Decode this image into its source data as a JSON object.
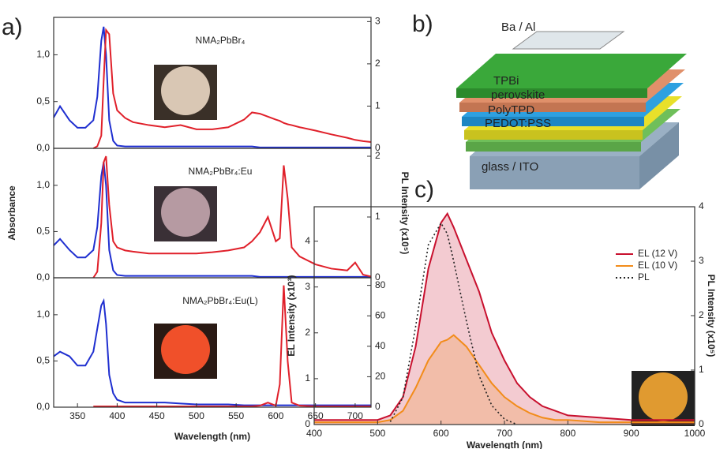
{
  "chart_data": [
    {
      "type": "line",
      "label": "a)",
      "title": "NMA₂PbBr₄",
      "x": [
        320,
        328,
        340,
        350,
        360,
        370,
        375,
        380,
        383,
        386,
        390,
        395,
        400,
        410,
        420,
        440,
        460,
        480,
        500,
        520,
        540,
        560,
        570,
        580,
        590,
        600,
        605,
        610,
        615,
        620,
        630,
        650,
        670,
        690,
        700,
        710,
        720
      ],
      "xlim": [
        320,
        720
      ],
      "ylim": [
        0,
        1.4
      ],
      "y2lim": [
        0,
        3.1
      ],
      "yticks": [
        {
          "value": 0,
          "label": "0,0"
        },
        {
          "value": 0.5,
          "label": "0,5"
        },
        {
          "value": 1,
          "label": "1,0"
        }
      ],
      "y2ticks": [
        0,
        1,
        2,
        3
      ],
      "series": [
        {
          "name": "Absorbance",
          "color": "#1f2fd0",
          "values": [
            0.33,
            0.45,
            0.3,
            0.22,
            0.22,
            0.3,
            0.55,
            1.15,
            1.3,
            1.0,
            0.3,
            0.08,
            0.03,
            0.02,
            0.02,
            0.02,
            0.02,
            0.02,
            0.02,
            0.02,
            0.02,
            0.02,
            0.02,
            0.01,
            0.01,
            0.01,
            0.01,
            0.01,
            0.01,
            0.01,
            0.01,
            0.01,
            0.01,
            0.01,
            0.01,
            0.01,
            0.01
          ]
        },
        {
          "name": "PL",
          "color": "#e0202a",
          "axis": "y2",
          "values": [
            null,
            null,
            null,
            null,
            null,
            0.0,
            0.05,
            0.3,
            1.6,
            2.8,
            2.7,
            1.3,
            0.9,
            0.72,
            0.62,
            0.55,
            0.5,
            0.55,
            0.45,
            0.45,
            0.5,
            0.68,
            0.85,
            0.82,
            0.75,
            0.68,
            0.65,
            0.6,
            0.57,
            0.55,
            0.5,
            0.42,
            0.33,
            0.25,
            0.2,
            0.17,
            0.15
          ]
        }
      ]
    },
    {
      "type": "line",
      "title": "NMA₂PbBr₄:Eu",
      "x": [
        320,
        328,
        340,
        350,
        360,
        370,
        375,
        380,
        383,
        386,
        390,
        395,
        400,
        410,
        420,
        440,
        460,
        480,
        500,
        520,
        540,
        560,
        570,
        580,
        590,
        600,
        605,
        610,
        615,
        620,
        630,
        650,
        670,
        690,
        700,
        710,
        720
      ],
      "xlim": [
        320,
        720
      ],
      "ylim": [
        0,
        1.4
      ],
      "y2lim": [
        0,
        2.13
      ],
      "yticks": [
        {
          "value": 0,
          "label": "0,0"
        },
        {
          "value": 0.5,
          "label": "0,5"
        },
        {
          "value": 1,
          "label": "1,0"
        }
      ],
      "y2ticks": [
        0,
        1,
        2
      ],
      "ylabel": "Absorbance",
      "y2label": "PL Intensity (x10⁵)",
      "series": [
        {
          "name": "Absorbance",
          "color": "#1f2fd0",
          "values": [
            0.35,
            0.42,
            0.3,
            0.22,
            0.22,
            0.3,
            0.55,
            1.1,
            1.25,
            1.0,
            0.3,
            0.08,
            0.03,
            0.02,
            0.02,
            0.02,
            0.02,
            0.02,
            0.02,
            0.02,
            0.02,
            0.02,
            0.02,
            0.01,
            0.01,
            0.01,
            0.01,
            0.01,
            0.01,
            0.01,
            0.01,
            0.01,
            0.01,
            0.01,
            0.01,
            0.01,
            0.01
          ]
        },
        {
          "name": "PL",
          "color": "#e0202a",
          "axis": "y2",
          "values": [
            null,
            null,
            null,
            null,
            null,
            0.0,
            0.1,
            0.9,
            1.9,
            2.0,
            1.2,
            0.6,
            0.5,
            0.45,
            0.43,
            0.4,
            0.4,
            0.4,
            0.4,
            0.42,
            0.45,
            0.5,
            0.6,
            0.75,
            1.0,
            0.6,
            0.65,
            1.85,
            1.3,
            0.5,
            0.35,
            0.22,
            0.15,
            0.12,
            0.25,
            0.05,
            0.02
          ]
        }
      ]
    },
    {
      "type": "line",
      "title": "NMA₂PbBr₄:Eu(L)",
      "x": [
        320,
        328,
        340,
        350,
        360,
        370,
        375,
        380,
        383,
        386,
        390,
        395,
        400,
        410,
        420,
        440,
        460,
        480,
        500,
        520,
        540,
        560,
        570,
        580,
        590,
        600,
        605,
        610,
        615,
        620,
        630,
        650,
        670,
        690,
        700,
        710,
        720
      ],
      "xlim": [
        320,
        720
      ],
      "ylim": [
        0,
        1.4
      ],
      "y2lim": [
        0,
        85
      ],
      "xticks": [
        350,
        400,
        450,
        500,
        550,
        600,
        650,
        700
      ],
      "yticks": [
        {
          "value": 0,
          "label": "0,0"
        },
        {
          "value": 0.5,
          "label": "0,5"
        },
        {
          "value": 1,
          "label": "1,0"
        }
      ],
      "y2ticks": [
        0,
        20,
        40,
        60,
        80
      ],
      "xlabel": "Wavelength (nm)",
      "series": [
        {
          "name": "Absorbance",
          "color": "#1f2fd0",
          "values": [
            0.55,
            0.6,
            0.55,
            0.45,
            0.45,
            0.6,
            0.85,
            1.1,
            1.15,
            0.9,
            0.35,
            0.15,
            0.08,
            0.05,
            0.05,
            0.05,
            0.05,
            0.04,
            0.03,
            0.03,
            0.03,
            0.02,
            0.02,
            0.02,
            0.02,
            0.02,
            0.02,
            0.02,
            0.02,
            0.02,
            0.02,
            0.02,
            0.02,
            0.02,
            0.02,
            0.02,
            0.02
          ]
        },
        {
          "name": "PL",
          "color": "#e0202a",
          "axis": "y2",
          "values": [
            null,
            null,
            null,
            null,
            null,
            0.5,
            0.5,
            0.5,
            0.5,
            0.5,
            0.5,
            0.5,
            0.5,
            0.5,
            0.5,
            0.5,
            0.5,
            0.5,
            0.5,
            0.5,
            0.5,
            0.5,
            0.5,
            1,
            3,
            1,
            15,
            80,
            30,
            3,
            1,
            0.5,
            0.5,
            0.5,
            0.5,
            0.5,
            0.5
          ]
        }
      ]
    },
    {
      "type": "line",
      "label": "c)",
      "x": [
        400,
        450,
        500,
        520,
        540,
        560,
        580,
        600,
        610,
        620,
        640,
        660,
        680,
        700,
        720,
        740,
        760,
        780,
        800,
        850,
        900,
        950,
        1000
      ],
      "xlim": [
        400,
        1000
      ],
      "ylim": [
        0,
        4.75
      ],
      "y2lim": [
        0,
        4
      ],
      "xticks": [
        400,
        500,
        600,
        700,
        800,
        900,
        1000
      ],
      "yticks": [
        0,
        1,
        2,
        3,
        4
      ],
      "y2ticks": [
        0,
        1,
        2,
        3,
        4
      ],
      "xlabel": "Wavelength (nm)",
      "ylabel": "EL Intensity (x10³)",
      "y2label": "PL Intensity (x10⁵)",
      "legend": "upper right",
      "series": [
        {
          "name": "EL (12 V)",
          "color": "#c8102e",
          "fill": true,
          "values": [
            0.1,
            0.1,
            0.1,
            0.2,
            0.6,
            1.7,
            3.4,
            4.4,
            4.6,
            4.3,
            3.6,
            2.9,
            2.0,
            1.4,
            0.9,
            0.6,
            0.4,
            0.3,
            0.2,
            0.15,
            0.1,
            0.1,
            0.1
          ]
        },
        {
          "name": "EL (10 V)",
          "color": "#f28c1a",
          "fill": true,
          "values": [
            0.05,
            0.05,
            0.05,
            0.1,
            0.3,
            0.8,
            1.4,
            1.8,
            1.85,
            1.95,
            1.7,
            1.3,
            0.9,
            0.6,
            0.4,
            0.25,
            0.15,
            0.1,
            0.1,
            0.05,
            0.05,
            0.05,
            0.05
          ]
        },
        {
          "name": "PL",
          "color": "#222222",
          "axis": "y2",
          "style": "dotted",
          "values": [
            null,
            null,
            null,
            0.05,
            0.5,
            1.8,
            3.3,
            3.7,
            3.5,
            3.0,
            1.9,
            0.9,
            0.35,
            0.1,
            0.0,
            null,
            null,
            null,
            null,
            null,
            null,
            null,
            null
          ]
        }
      ]
    }
  ],
  "diagram": {
    "label": "b)",
    "layers": [
      "Ba / Al",
      "TPBi",
      "perovskite",
      "PolyTPD",
      "PEDOT:PSS",
      "glass / ITO"
    ]
  }
}
